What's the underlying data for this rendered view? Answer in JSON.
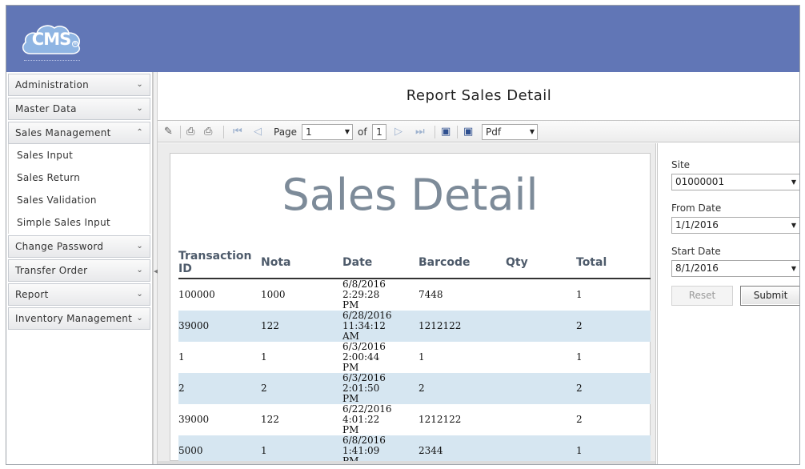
{
  "header": {
    "logo_text": "CMS",
    "logo_mark": "®",
    "bg_color": "#6176b6"
  },
  "sidebar": {
    "items": [
      {
        "label": "Administration",
        "icon": "chevron-down-icon"
      },
      {
        "label": "Master Data",
        "icon": "chevron-down-icon"
      },
      {
        "label": "Sales Management",
        "icon": "chevron-up-icon",
        "expanded": true,
        "children": [
          "Sales Input",
          "Sales Return",
          "Sales Validation",
          "Simple Sales Input"
        ]
      },
      {
        "label": "Change Password",
        "icon": "chevron-down-icon"
      },
      {
        "label": "Transfer Order",
        "icon": "chevron-down-icon"
      },
      {
        "label": "Report",
        "icon": "chevron-down-icon"
      },
      {
        "label": "Inventory Management",
        "icon": "chevron-down-icon"
      }
    ]
  },
  "main": {
    "title": "Report Sales Detail"
  },
  "toolbar": {
    "page_label": "Page",
    "page_value": "1",
    "of_label": "of",
    "page_total": "1",
    "export_format": "Pdf"
  },
  "report": {
    "title": "Sales Detail",
    "columns": [
      "Transaction ID",
      "Nota",
      "Date",
      "Barcode",
      "Qty",
      "Total"
    ],
    "rows": [
      {
        "transaction_id": "100000",
        "nota": "1000",
        "date": "6/8/2016 2:29:28",
        "date2": "PM",
        "barcode": "7448",
        "qty": "",
        "total": "1"
      },
      {
        "transaction_id": "39000",
        "nota": "122",
        "date": "6/28/2016 11:34:12",
        "date2": "AM",
        "barcode": "1212122",
        "qty": "",
        "total": "2"
      },
      {
        "transaction_id": "1",
        "nota": "1",
        "date": "6/3/2016 2:00:44",
        "date2": "PM",
        "barcode": "1",
        "qty": "",
        "total": "1"
      },
      {
        "transaction_id": "2",
        "nota": "2",
        "date": "6/3/2016 2:01:50",
        "date2": "PM",
        "barcode": "2",
        "qty": "",
        "total": "2"
      },
      {
        "transaction_id": "39000",
        "nota": "122",
        "date": "6/22/2016 4:01:22",
        "date2": "PM",
        "barcode": "1212122",
        "qty": "",
        "total": "2"
      },
      {
        "transaction_id": "5000",
        "nota": "1",
        "date": "6/8/2016 1:41:09",
        "date2": "PM",
        "barcode": "2344",
        "qty": "",
        "total": "1"
      }
    ],
    "alt_row_color": "#d6e6f1",
    "title_color": "#7d8b99"
  },
  "params": {
    "site_label": "Site",
    "site_value": "01000001",
    "from_date_label": "From Date",
    "from_date_value": "1/1/2016",
    "start_date_label": "Start Date",
    "start_date_value": "8/1/2016",
    "reset_label": "Reset",
    "submit_label": "Submit"
  }
}
